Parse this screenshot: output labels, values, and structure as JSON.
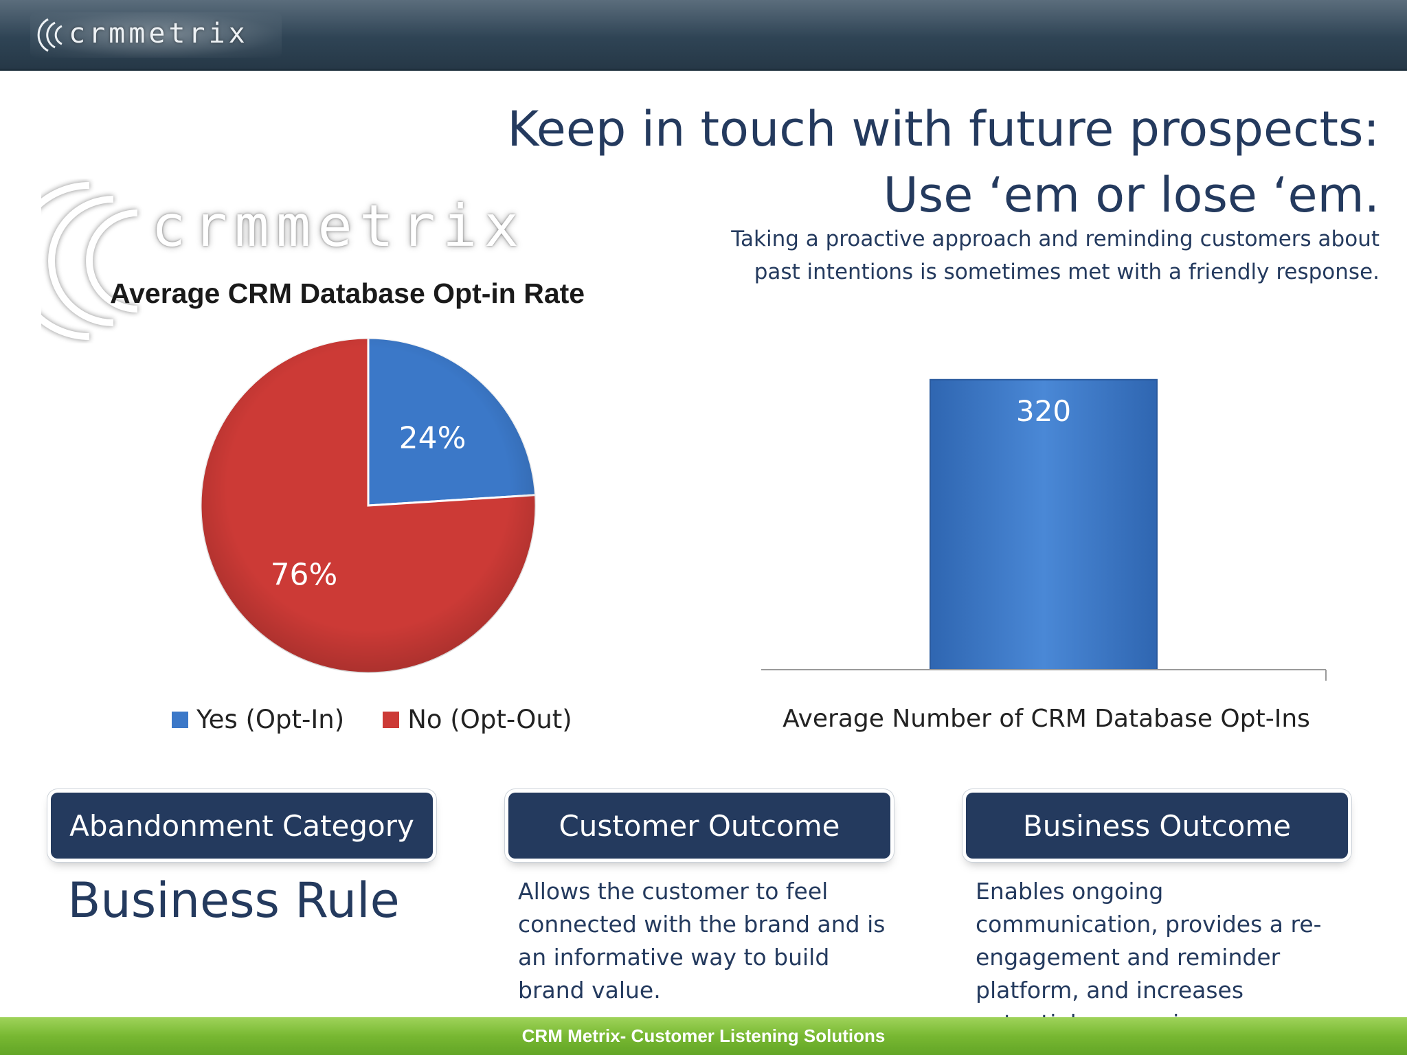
{
  "header": {
    "logo_text": "crmmetrix"
  },
  "slide": {
    "title_line1": "Keep in touch with future prospects:",
    "title_line2": "Use ‘em or lose ‘em.",
    "subtitle": "Taking a proactive approach and reminding customers about past intentions is sometimes met with a friendly response."
  },
  "watermark": {
    "logo_text": "crmmetrix"
  },
  "chart_data": [
    {
      "type": "pie",
      "title": "Average CRM Database Opt-in Rate",
      "categories": [
        "Yes (Opt-In)",
        "No (Opt-Out)"
      ],
      "values": [
        24,
        76
      ],
      "labels": [
        "24%",
        "76%"
      ],
      "colors": [
        "#3b78c8",
        "#cc3a36"
      ],
      "legend_position": "bottom"
    },
    {
      "type": "bar",
      "categories": [
        "Average Number of CRM Database Opt-Ins"
      ],
      "values": [
        320
      ],
      "labels": [
        "320"
      ],
      "color": "#3b78c8",
      "ylim": [
        0,
        360
      ],
      "grid": false
    }
  ],
  "columns": [
    {
      "header": "Abandonment Category",
      "body": "Business Rule"
    },
    {
      "header": "Customer Outcome",
      "body": "Allows the customer to feel connected with the brand and is an informative way to build brand value."
    },
    {
      "header": "Business Outcome",
      "body": "Enables ongoing communication, provides a re-engagement and reminder platform, and increases potential conversions."
    }
  ],
  "footer": {
    "text": "CRM Metrix- Customer Listening Solutions"
  },
  "colors": {
    "navy": "#243a5e",
    "blue": "#3b78c8",
    "red": "#cc3a36",
    "green": "#78b832"
  }
}
